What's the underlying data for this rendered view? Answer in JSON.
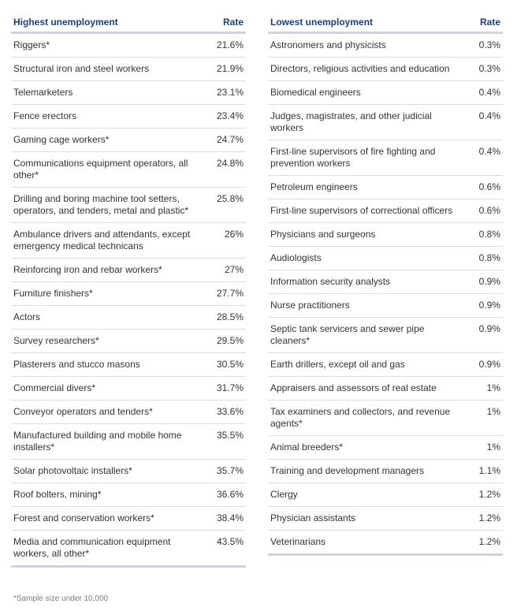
{
  "highest": {
    "header": "Highest unemployment",
    "rate_header": "Rate",
    "rows": [
      {
        "occupation": "Riggers*",
        "rate": "21.6%"
      },
      {
        "occupation": "Structural iron and steel workers",
        "rate": "21.9%"
      },
      {
        "occupation": "Telemarketers",
        "rate": "23.1%"
      },
      {
        "occupation": "Fence erectors",
        "rate": "23.4%"
      },
      {
        "occupation": "Gaming cage workers*",
        "rate": "24.7%"
      },
      {
        "occupation": "Communications equipment operators, all other*",
        "rate": "24.8%"
      },
      {
        "occupation": "Drilling and boring machine tool setters, operators, and tenders, metal and plastic*",
        "rate": "25.8%"
      },
      {
        "occupation": "Ambulance drivers and attendants, except emergency medical technicans",
        "rate": "26%"
      },
      {
        "occupation": "Reinforcing iron and rebar workers*",
        "rate": "27%"
      },
      {
        "occupation": "Furniture finishers*",
        "rate": "27.7%"
      },
      {
        "occupation": "Actors",
        "rate": "28.5%"
      },
      {
        "occupation": "Survey researchers*",
        "rate": "29.5%"
      },
      {
        "occupation": "Plasterers and stucco masons",
        "rate": "30.5%"
      },
      {
        "occupation": "Commercial divers*",
        "rate": "31.7%"
      },
      {
        "occupation": "Conveyor operators and tenders*",
        "rate": "33.6%"
      },
      {
        "occupation": "Manufactured building and mobile home installers*",
        "rate": "35.5%"
      },
      {
        "occupation": "Solar photovoltaic installers*",
        "rate": "35.7%"
      },
      {
        "occupation": "Roof bolters, mining*",
        "rate": "36.6%"
      },
      {
        "occupation": "Forest and conservation workers*",
        "rate": "38.4%"
      },
      {
        "occupation": "Media and communication equipment workers, all other*",
        "rate": "43.5%"
      }
    ]
  },
  "lowest": {
    "header": "Lowest unemployment",
    "rate_header": "Rate",
    "rows": [
      {
        "occupation": "Astronomers and physicists",
        "rate": "0.3%"
      },
      {
        "occupation": "Directors, religious activities and education",
        "rate": "0.3%"
      },
      {
        "occupation": "Biomedical engineers",
        "rate": "0.4%"
      },
      {
        "occupation": "Judges, magistrates, and other judicial workers",
        "rate": "0.4%"
      },
      {
        "occupation": "First-line supervisors of fire fighting and prevention workers",
        "rate": "0.4%"
      },
      {
        "occupation": "Petroleum engineers",
        "rate": "0.6%"
      },
      {
        "occupation": "First-line supervisors of correctional officers",
        "rate": "0.6%"
      },
      {
        "occupation": "Physicians and surgeons",
        "rate": "0.8%"
      },
      {
        "occupation": "Audiologists",
        "rate": "0.8%"
      },
      {
        "occupation": "Information security analysts",
        "rate": "0.9%"
      },
      {
        "occupation": "Nurse practitioners",
        "rate": "0.9%"
      },
      {
        "occupation": "Septic tank servicers and sewer pipe cleaners*",
        "rate": "0.9%"
      },
      {
        "occupation": "Earth drillers, except oil and gas",
        "rate": "0.9%"
      },
      {
        "occupation": "Appraisers and assessors of real estate",
        "rate": "1%"
      },
      {
        "occupation": "Tax examiners and collectors, and revenue agents*",
        "rate": "1%"
      },
      {
        "occupation": "Animal breeders*",
        "rate": "1%"
      },
      {
        "occupation": "Training and development managers",
        "rate": "1.1%"
      },
      {
        "occupation": "Clergy",
        "rate": "1.2%"
      },
      {
        "occupation": "Physician assistants",
        "rate": "1.2%"
      },
      {
        "occupation": "Veterinarians",
        "rate": "1.2%"
      }
    ]
  },
  "footnote": "*Sample size under 10,000"
}
